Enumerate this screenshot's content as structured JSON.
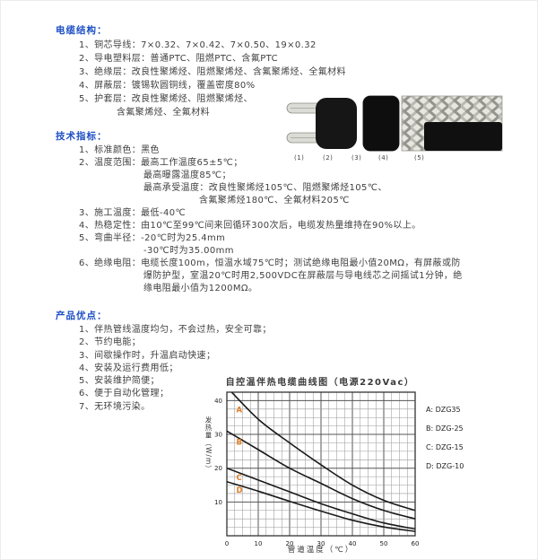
{
  "colors": {
    "heading_blue": "#1d4fc4",
    "body_text": "#3f3f3f",
    "curve_black": "#1a1a1a",
    "curve_label_orange": "#e07f28",
    "grid_minor": "#9b9b9b",
    "grid_major": "#555555"
  },
  "sections": {
    "structure": {
      "title": "电缆结构：",
      "lines": [
        {
          "t": "1、铜芯导线：7×0.32、7×0.42、7×0.50、19×0.32",
          "ind": 0
        },
        {
          "t": "2、导电塑料层：普通PTC、阻燃PTC、含氟PTC",
          "ind": 0
        },
        {
          "t": "3、绝缘层：改良性聚烯烃、阻燃聚烯烃、含氟聚烯烃、全氟材料",
          "ind": 0
        },
        {
          "t": "4、屏蔽层：镀锡软圆铜线，覆盖密度80%",
          "ind": 0
        },
        {
          "t": "5、护套层：改良性聚烯烃、阻燃聚烯烃、",
          "ind": 0
        },
        {
          "t": "含氟聚烯烃、全氟材料",
          "ind": 1
        }
      ]
    },
    "specs": {
      "title": "技术指标：",
      "lines": [
        {
          "t": "1、标准颜色：黑色",
          "ind": 0
        },
        {
          "t": "2、温度范围：最高工作温度65±5℃；",
          "ind": 0
        },
        {
          "t": "最高曝露温度85℃；",
          "ind": 2
        },
        {
          "t": "最高承受温度：改良性聚烯烃105℃、阻燃聚烯烃105℃、",
          "ind": 2
        },
        {
          "t": "含氟聚烯烃180℃、全氟材料205℃",
          "ind": 3
        },
        {
          "t": "3、施工温度：最低-40℃",
          "ind": 0
        },
        {
          "t": "4、热稳定性：由10℃至99℃间来回循环300次后，电缆发热量维持在90%以上。",
          "ind": 0
        },
        {
          "t": "5、弯曲半径：-20℃时为25.4mm",
          "ind": 0
        },
        {
          "t": "-30℃时为35.00mm",
          "ind": 2
        },
        {
          "t": "6、绝缘电阻：电缆长度100m，恒温水域75℃时；测试绝缘电阻最小值20MΩ，有屏蔽或防",
          "ind": 0
        },
        {
          "t": "爆防护型，室温20℃时用2,500VDC在屏蔽层与导电线芯之间摇试1分钟，绝",
          "ind": 2
        },
        {
          "t": "缘电阻最小值为1200MΩ。",
          "ind": 2
        }
      ]
    },
    "advantages": {
      "title": "产品优点：",
      "lines": [
        {
          "t": "1、伴热管线温度均匀，不会过热，安全可靠；",
          "ind": 0
        },
        {
          "t": "2、节约电能；",
          "ind": 0
        },
        {
          "t": "3、间歇操作时，升温启动快速；",
          "ind": 0
        },
        {
          "t": "4、安装及运行费用低；",
          "ind": 0
        },
        {
          "t": "5、安装维护简便；",
          "ind": 0
        },
        {
          "t": "6、便于自动化管理；",
          "ind": 0
        },
        {
          "t": "7、无环境污染。",
          "ind": 0
        }
      ]
    }
  },
  "cable_figure": {
    "labels": [
      "(1)",
      "(2)",
      "(3)",
      "(4)",
      "(5)"
    ]
  },
  "chart_data": {
    "type": "line",
    "title": "自控温伴热电缆曲线图（电源220Vac）",
    "xlabel": "管道温度（℃）",
    "ylabel": "发热量（W/m）",
    "xlim": [
      0,
      60
    ],
    "ylim": [
      0,
      42.5
    ],
    "xticks": [
      0,
      10,
      20,
      30,
      40,
      50,
      60
    ],
    "yticks": [
      10,
      20,
      30,
      40
    ],
    "minor_step": 2.5,
    "grid": true,
    "legend_position": "right",
    "x": [
      0,
      10,
      20,
      30,
      40,
      50,
      60
    ],
    "series": [
      {
        "label": "A",
        "legend": "A: DZG35",
        "values": [
          44,
          34.5,
          27.5,
          21,
          15,
          10.5,
          7.5
        ],
        "label_pos": [
          3,
          36.5
        ]
      },
      {
        "label": "B",
        "legend": "B: DZG-25",
        "values": [
          31,
          25.5,
          20,
          15.5,
          11,
          7.5,
          5
        ],
        "label_pos": [
          3,
          27
        ]
      },
      {
        "label": "C",
        "legend": "C: DZG-15",
        "values": [
          20,
          16.5,
          13,
          9.5,
          6.5,
          3.8,
          2
        ],
        "label_pos": [
          3,
          16.5
        ]
      },
      {
        "label": "D",
        "legend": "D: DZG-10",
        "values": [
          16,
          13.2,
          10.2,
          7.3,
          4.6,
          2.6,
          1.3
        ],
        "label_pos": [
          3,
          12.8
        ]
      }
    ]
  }
}
